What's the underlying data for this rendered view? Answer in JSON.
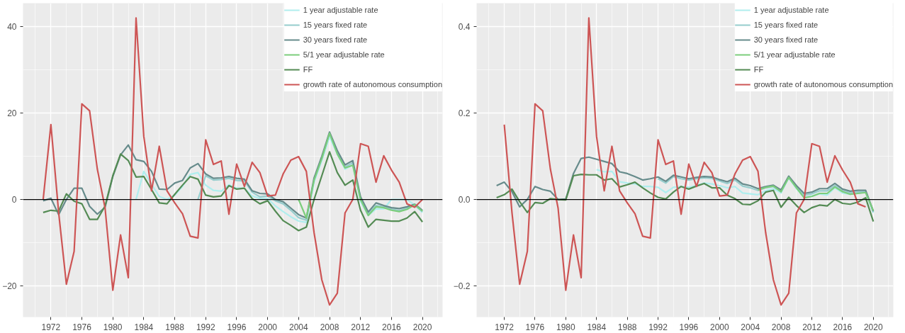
{
  "chart_data": [
    {
      "type": "line",
      "x": [
        1971,
        1972,
        1973,
        1974,
        1975,
        1976,
        1977,
        1978,
        1979,
        1980,
        1981,
        1982,
        1983,
        1984,
        1985,
        1986,
        1987,
        1988,
        1989,
        1990,
        1991,
        1992,
        1993,
        1994,
        1995,
        1996,
        1997,
        1998,
        1999,
        2000,
        2001,
        2002,
        2003,
        2004,
        2005,
        2006,
        2007,
        2008,
        2009,
        2010,
        2011,
        2012,
        2013,
        2014,
        2015,
        2016,
        2017,
        2018,
        2019,
        2020
      ],
      "series": [
        {
          "name": "1 year adjustable rate",
          "color": "#afeeee",
          "values": [
            null,
            null,
            null,
            null,
            null,
            null,
            null,
            null,
            null,
            null,
            null,
            null,
            0,
            6.5,
            3.5,
            0.7,
            0,
            1,
            3,
            5.8,
            6.2,
            3.3,
            2.1,
            1.9,
            3.4,
            2.6,
            2.6,
            0.8,
            0.2,
            0.2,
            -1.5,
            -2.8,
            -4,
            -5,
            -5.3,
            4,
            9,
            14.5,
            10.5,
            7,
            8,
            -0.5,
            -3.7,
            -2.2,
            -2.2,
            0,
            0,
            0,
            -1.3,
            -3
          ]
        },
        {
          "name": "15 years fixed rate",
          "color": "#96cdcd",
          "values": [
            null,
            null,
            null,
            null,
            null,
            null,
            null,
            null,
            null,
            null,
            null,
            null,
            null,
            null,
            null,
            null,
            null,
            null,
            null,
            null,
            0,
            5.5,
            4.5,
            4.6,
            4.9,
            4.4,
            4.3,
            1.7,
            0.6,
            0.8,
            -0.3,
            -1,
            -2.5,
            -4.2,
            -4.8,
            4.5,
            9.5,
            15.3,
            11,
            7.5,
            8.5,
            0.3,
            -3.3,
            -1.4,
            -1.7,
            -2.2,
            -2.6,
            -2,
            -1.3,
            -2.8
          ]
        },
        {
          "name": "30 years fixed rate",
          "color": "#668b8b",
          "values": [
            -0.3,
            0.3,
            -3.5,
            0,
            2.6,
            2.6,
            -1.6,
            -3.4,
            -1.8,
            5.3,
            10.3,
            12.6,
            9.2,
            8.8,
            6.5,
            2.4,
            2.3,
            3.8,
            4.4,
            7.3,
            8.3,
            5.9,
            4.9,
            5,
            5.3,
            4.9,
            4.7,
            2,
            1.4,
            1.3,
            0,
            -0.5,
            -2,
            -3.5,
            -4.3,
            5,
            10,
            15.6,
            11.3,
            8,
            9,
            0.6,
            -2.9,
            -0.8,
            -1.4,
            -1.9,
            -2.1,
            -1.7,
            -1.1,
            -2.5
          ]
        },
        {
          "name": "5/1 year adjustable rate",
          "color": "#7ccd7c",
          "values": [
            null,
            null,
            null,
            null,
            null,
            null,
            null,
            null,
            null,
            null,
            null,
            null,
            null,
            null,
            null,
            null,
            null,
            null,
            null,
            null,
            null,
            null,
            null,
            null,
            null,
            null,
            null,
            null,
            null,
            null,
            null,
            null,
            null,
            0,
            -4.3,
            4.5,
            9.5,
            15.3,
            10.5,
            7.3,
            7.9,
            0,
            -3.7,
            -1.7,
            -1.9,
            -2.5,
            -2.8,
            -2.3,
            -1.2,
            -2.7
          ]
        },
        {
          "name": "FF",
          "color": "#548b54",
          "values": [
            -3,
            -2.5,
            -2.7,
            1.3,
            -0.4,
            -1,
            -4.6,
            -4.6,
            -1.5,
            5.5,
            10.5,
            9,
            5.2,
            5.3,
            2.3,
            -0.8,
            -1,
            1.2,
            3.3,
            5.3,
            4.7,
            1,
            0.6,
            0.8,
            3.2,
            2.4,
            2.6,
            0.2,
            -1,
            -0.3,
            -2.7,
            -4.9,
            -6,
            -7.2,
            -6.4,
            0,
            5.5,
            11,
            6.2,
            3.3,
            4.5,
            -2.5,
            -6.4,
            -4.6,
            -4.8,
            -5,
            -5,
            -4.3,
            -2.8,
            -5.2
          ]
        },
        {
          "name": "growth rate of autonomous consumption",
          "color": "#cd5555",
          "values": [
            0,
            17.3,
            -3,
            -19.6,
            -12,
            22.1,
            20.5,
            7,
            -2,
            -21,
            -8.2,
            -18.1,
            42,
            14.6,
            2,
            12.3,
            2,
            -0.8,
            -3.3,
            -8.5,
            -8.9,
            13.8,
            8.1,
            8.9,
            -3.4,
            8.2,
            3,
            8.6,
            6.2,
            0.8,
            1,
            5.9,
            9.1,
            9.9,
            6.5,
            -7.7,
            -18.6,
            -24.4,
            -21.7,
            -3.1,
            0,
            12.9,
            12.3,
            4,
            10.1,
            6.8,
            4,
            -1,
            -1.8,
            0
          ]
        }
      ],
      "xlim": [
        1968.4,
        2022.6
      ],
      "ylim": [
        -27.2,
        45.4
      ],
      "xticks": [
        1972,
        1976,
        1980,
        1984,
        1988,
        1992,
        1996,
        2000,
        2004,
        2008,
        2012,
        2016,
        2020
      ],
      "yticks": [
        -20,
        0,
        20,
        40
      ],
      "ref_lines": [
        {
          "axis": "y",
          "value": 0,
          "color": "#000000"
        }
      ],
      "grid": true,
      "legend": "top right",
      "line_style": "solid"
    },
    {
      "type": "line",
      "x": [
        1971,
        1972,
        1973,
        1974,
        1975,
        1976,
        1977,
        1978,
        1979,
        1980,
        1981,
        1982,
        1983,
        1984,
        1985,
        1986,
        1987,
        1988,
        1989,
        1990,
        1991,
        1992,
        1993,
        1994,
        1995,
        1996,
        1997,
        1998,
        1999,
        2000,
        2001,
        2002,
        2003,
        2004,
        2005,
        2006,
        2007,
        2008,
        2009,
        2010,
        2011,
        2012,
        2013,
        2014,
        2015,
        2016,
        2017,
        2018,
        2019,
        2020
      ],
      "series": [
        {
          "name": "1 year adjustable rate",
          "color": "#afeeee",
          "values": [
            null,
            null,
            null,
            null,
            null,
            null,
            null,
            null,
            null,
            null,
            null,
            null,
            null,
            0.069,
            0.064,
            0.065,
            0.041,
            0.038,
            0.036,
            0.03,
            0.03,
            0.028,
            0.016,
            0.028,
            0.03,
            0.028,
            0.032,
            0.038,
            0.036,
            0.032,
            0.027,
            0.03,
            0.015,
            0.013,
            0.011,
            0.02,
            0.025,
            0.015,
            0.05,
            0.025,
            0.005,
            0.008,
            0.013,
            0.01,
            0.027,
            0.015,
            0.012,
            0.015,
            0.017,
            -0.031
          ]
        },
        {
          "name": "15 years fixed rate",
          "color": "#96cdcd",
          "values": [
            null,
            null,
            null,
            null,
            null,
            null,
            null,
            null,
            null,
            null,
            null,
            null,
            null,
            null,
            null,
            null,
            null,
            null,
            null,
            null,
            null,
            0.048,
            0.038,
            0.053,
            0.048,
            0.045,
            0.048,
            0.05,
            0.049,
            0.043,
            0.037,
            0.045,
            0.031,
            0.027,
            0.021,
            0.027,
            0.03,
            0.018,
            0.051,
            0.028,
            0.01,
            0.013,
            0.02,
            0.02,
            0.032,
            0.02,
            0.015,
            0.017,
            0.018,
            -0.029
          ]
        },
        {
          "name": "30 years fixed rate",
          "color": "#668b8b",
          "values": [
            0.032,
            0.04,
            0.018,
            -0.017,
            0,
            0.03,
            0.023,
            0.019,
            0,
            0.001,
            0.06,
            0.095,
            0.098,
            0.093,
            0.088,
            0.083,
            0.064,
            0.06,
            0.053,
            0.045,
            0.048,
            0.052,
            0.042,
            0.056,
            0.052,
            0.048,
            0.051,
            0.053,
            0.052,
            0.046,
            0.041,
            0.049,
            0.036,
            0.032,
            0.025,
            0.03,
            0.033,
            0.022,
            0.054,
            0.032,
            0.014,
            0.017,
            0.025,
            0.025,
            0.037,
            0.024,
            0.019,
            0.021,
            0.021,
            -0.027
          ]
        },
        {
          "name": "5/1 year adjustable rate",
          "color": "#7ccd7c",
          "values": [
            null,
            null,
            null,
            null,
            null,
            null,
            null,
            null,
            null,
            null,
            null,
            null,
            null,
            null,
            null,
            null,
            null,
            null,
            null,
            null,
            null,
            null,
            null,
            null,
            null,
            null,
            null,
            null,
            null,
            null,
            null,
            null,
            null,
            null,
            0.022,
            0.028,
            0.031,
            0.018,
            0.051,
            0.027,
            0.004,
            0.007,
            0.014,
            0.014,
            0.029,
            0.018,
            0.012,
            0.014,
            0.016,
            -0.026
          ]
        },
        {
          "name": "FF",
          "color": "#548b54",
          "values": [
            0.004,
            0.011,
            0.024,
            -0.005,
            -0.03,
            -0.007,
            -0.009,
            0.002,
            0,
            -0.001,
            0.055,
            0.058,
            0.057,
            0.057,
            0.045,
            0.048,
            0.029,
            0.034,
            0.04,
            0.027,
            0.015,
            0.005,
            0.001,
            0.017,
            0.03,
            0.024,
            0.031,
            0.037,
            0.027,
            0.027,
            0.01,
            0.002,
            -0.011,
            -0.012,
            -0.003,
            0.017,
            0.021,
            -0.018,
            0.005,
            -0.014,
            -0.03,
            -0.019,
            -0.013,
            -0.015,
            0,
            -0.009,
            -0.011,
            -0.006,
            0.004,
            -0.051
          ]
        },
        {
          "name": "growth rate of autonomous consumption",
          "color": "#cd5555",
          "values": [
            null,
            0.173,
            -0.03,
            -0.196,
            -0.12,
            0.221,
            0.205,
            0.07,
            -0.02,
            -0.21,
            -0.082,
            -0.181,
            0.42,
            0.146,
            0.02,
            0.123,
            0.02,
            -0.008,
            -0.033,
            -0.085,
            -0.089,
            0.138,
            0.081,
            0.089,
            -0.034,
            0.082,
            0.03,
            0.086,
            0.062,
            0.008,
            0.01,
            0.059,
            0.091,
            0.099,
            0.065,
            -0.077,
            -0.186,
            -0.244,
            -0.217,
            -0.031,
            0,
            0.129,
            0.123,
            0.04,
            0.101,
            0.068,
            0.04,
            -0.01,
            -0.017,
            null
          ]
        }
      ],
      "xlim": [
        1968.4,
        2022.6
      ],
      "ylim": [
        -0.272,
        0.454
      ],
      "xticks": [
        1972,
        1976,
        1980,
        1984,
        1988,
        1992,
        1996,
        2000,
        2004,
        2008,
        2012,
        2016,
        2020
      ],
      "yticks": [
        -0.2,
        {
          "value": 0,
          "label": "0.0"
        },
        0.2,
        0.4
      ],
      "ref_lines": [
        {
          "axis": "y",
          "value": 0,
          "color": "#000000"
        }
      ],
      "grid": true,
      "legend": "top right",
      "line_style": "solid"
    }
  ]
}
